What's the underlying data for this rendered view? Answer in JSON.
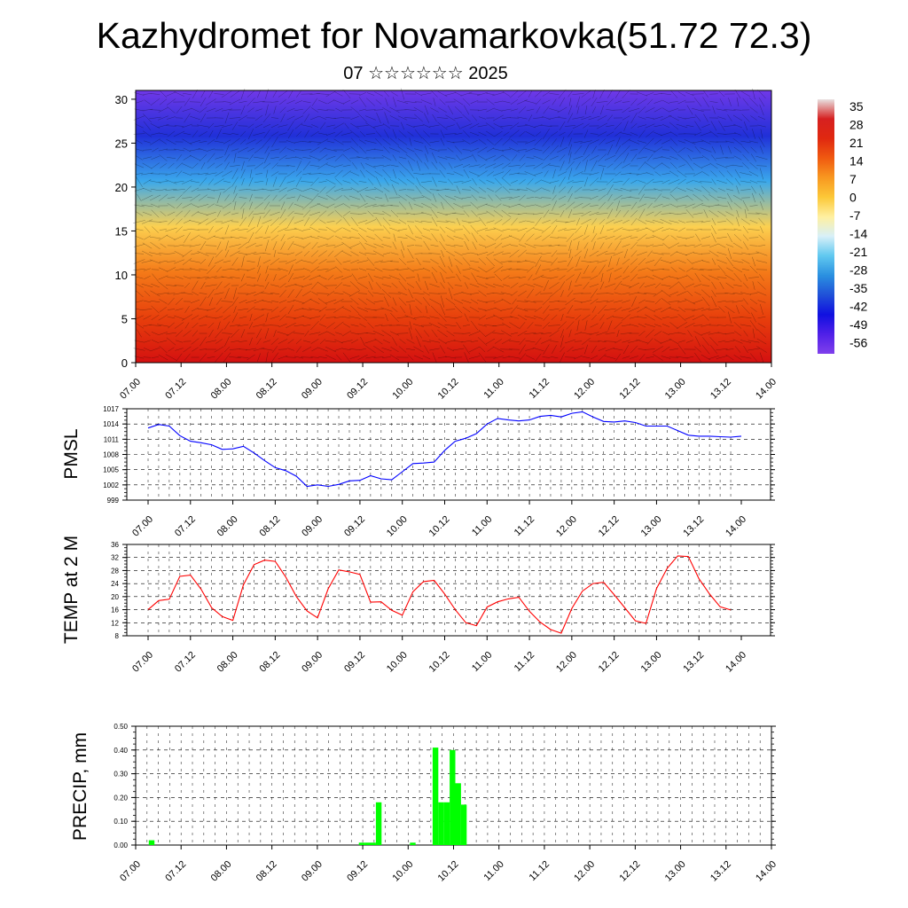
{
  "header": {
    "title": "Kazhydromet for Novamarkovka(51.72 72.3)",
    "subtitle": "07 ☆☆☆☆☆☆ 2025"
  },
  "chart_data": [
    {
      "type": "heatmap",
      "name": "temperature-wind-cross-section",
      "x_ticks": [
        "07.00",
        "07.12",
        "08.00",
        "08.12",
        "09.00",
        "09.12",
        "10.00",
        "10.12",
        "11.00",
        "11.12",
        "12.00",
        "12.12",
        "13.00",
        "13.12",
        "14.00"
      ],
      "y_ticks": [
        0,
        5,
        10,
        15,
        20,
        25,
        30
      ],
      "ylim": [
        0,
        31
      ],
      "colorbar": {
        "labels": [
          35,
          28,
          21,
          14,
          7,
          0,
          -7,
          -14,
          -21,
          -28,
          -35,
          -42,
          -49,
          -56
        ],
        "colors": [
          "#e8e0e0",
          "#d62020",
          "#e02810",
          "#f05a10",
          "#f89820",
          "#fcc838",
          "#fff0a0",
          "#d8f0f8",
          "#60c8f0",
          "#2a90e0",
          "#2050d8",
          "#1010e0",
          "#5020e8",
          "#8040ec"
        ]
      },
      "layers": [
        {
          "label": "0",
          "color": "#d41010"
        },
        {
          "label": "5",
          "color": "#e8400c"
        },
        {
          "label": "10",
          "color": "#f47a18"
        },
        {
          "label": "15",
          "color": "#fcd050"
        },
        {
          "label": "20",
          "color": "#3aa8ec"
        },
        {
          "label": "25",
          "color": "#2030d8"
        },
        {
          "label": "30",
          "color": "#7038e8"
        }
      ]
    },
    {
      "type": "line",
      "name": "pmsl",
      "ylabel": "PMSL",
      "ylim": [
        999,
        1017
      ],
      "y_ticks": [
        999,
        1002,
        1005,
        1008,
        1011,
        1014,
        1017
      ],
      "x_ticks": [
        "07.00",
        "07.12",
        "08.00",
        "08.12",
        "09.00",
        "09.12",
        "10.00",
        "10.12",
        "11.00",
        "11.12",
        "12.00",
        "12.12",
        "13.00",
        "13.12",
        "14.00"
      ],
      "x_start": 0,
      "x_step": 0.25,
      "series": [
        {
          "color": "#0000ff",
          "values": [
            1013.2,
            1013.9,
            1013.6,
            1011.7,
            1010.6,
            1010.3,
            1009.9,
            1009.0,
            1009.1,
            1009.6,
            1008.3,
            1006.8,
            1005.4,
            1004.8,
            1003.7,
            1001.7,
            1002.0,
            1001.7,
            1002.1,
            1002.8,
            1002.9,
            1003.8,
            1003.2,
            1003.0,
            1004.6,
            1006.2,
            1006.3,
            1006.5,
            1008.8,
            1010.6,
            1011.2,
            1012.1,
            1014.0,
            1015.1,
            1014.8,
            1014.6,
            1014.8,
            1015.5,
            1015.7,
            1015.4,
            1016.1,
            1016.4,
            1015.4,
            1014.5,
            1014.4,
            1014.6,
            1014.3,
            1013.6,
            1013.6,
            1013.6,
            1012.7,
            1011.8,
            1011.6,
            1011.6,
            1011.5,
            1011.4,
            1011.6
          ]
        }
      ]
    },
    {
      "type": "line",
      "name": "temp-2m",
      "ylabel": "TEMP at 2 M",
      "ylim": [
        8,
        36
      ],
      "y_ticks": [
        8,
        12,
        16,
        20,
        24,
        28,
        32,
        36
      ],
      "x_ticks": [
        "07.00",
        "07.12",
        "08.00",
        "08.12",
        "09.00",
        "09.12",
        "10.00",
        "10.12",
        "11.00",
        "11.12",
        "12.00",
        "12.12",
        "13.00",
        "13.12",
        "14.00"
      ],
      "x_start": 0,
      "x_step": 0.25,
      "series": [
        {
          "color": "#ff0000",
          "values": [
            16.0,
            18.8,
            19.2,
            26.2,
            26.6,
            22.3,
            16.6,
            13.9,
            12.7,
            23.6,
            29.8,
            31.2,
            30.8,
            26.0,
            20.0,
            15.6,
            13.5,
            22.4,
            28.2,
            27.6,
            26.8,
            18.3,
            18.4,
            15.8,
            14.3,
            21.5,
            24.6,
            25.0,
            20.8,
            16.0,
            12.0,
            11.1,
            16.8,
            18.4,
            19.3,
            19.8,
            15.5,
            12.2,
            9.9,
            8.8,
            16.4,
            21.7,
            24.0,
            24.4,
            20.6,
            16.6,
            12.6,
            11.8,
            22.5,
            28.7,
            32.5,
            32.3,
            25.5,
            20.8,
            16.9,
            15.9
          ]
        }
      ]
    },
    {
      "type": "bar",
      "name": "precip",
      "ylabel": "PRECIP, mm",
      "ylim": [
        0,
        0.5
      ],
      "y_ticks": [
        "0.00",
        "0.10",
        "0.20",
        "0.30",
        "0.40",
        "0.50"
      ],
      "x_ticks": [
        "07.00",
        "07.12",
        "08.00",
        "08.12",
        "09.00",
        "09.12",
        "10.00",
        "10.12",
        "11.00",
        "11.12",
        "12.00",
        "12.12",
        "13.00",
        "13.12",
        "14.00"
      ],
      "x_start": 0,
      "x_step": 0.125,
      "color": "#00ff00",
      "values": [
        0,
        0,
        0.02,
        0,
        0,
        0,
        0,
        0,
        0,
        0,
        0,
        0,
        0,
        0,
        0,
        0,
        0,
        0,
        0,
        0,
        0,
        0,
        0,
        0,
        0,
        0,
        0,
        0,
        0,
        0,
        0,
        0,
        0,
        0,
        0,
        0,
        0,
        0,
        0,
        0.01,
        0.01,
        0.01,
        0.18,
        0,
        0,
        0,
        0,
        0,
        0.01,
        0,
        0,
        0,
        0.41,
        0.18,
        0.18,
        0.4,
        0.26,
        0.17
      ]
    }
  ]
}
